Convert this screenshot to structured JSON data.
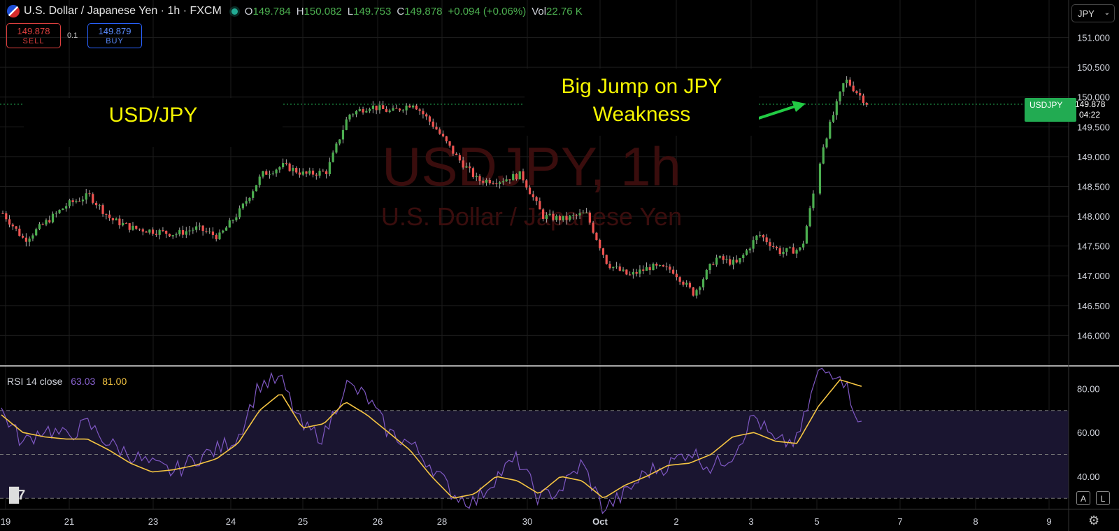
{
  "header": {
    "title": "U.S. Dollar / Japanese Yen · 1h · FXCM",
    "open_label": "O",
    "open": "149.784",
    "high_label": "H",
    "high": "150.082",
    "low_label": "L",
    "low": "149.753",
    "close_label": "C",
    "close": "149.878",
    "change": "+0.094 (+0.06%)",
    "vol_label": "Vol",
    "vol": "22.76 K",
    "status_color": "#22ab94"
  },
  "trade": {
    "sell_price": "149.878",
    "sell_label": "SELL",
    "buy_price": "149.879",
    "buy_label": "BUY",
    "spread": "0.1"
  },
  "currency_selector": {
    "value": "JPY",
    "caret_icon": "chevron-down-icon"
  },
  "annotations": {
    "symbol_text": "USD/JPY",
    "callout_line1": "Big Jump on JPY",
    "callout_line2": "Weakness",
    "arrow_color": "#22cc44",
    "text_color": "#f5f500"
  },
  "watermark": {
    "line1": "USDJPY, 1h",
    "line2": "U.S. Dollar / Japanese Yen"
  },
  "last_price_tag": {
    "symbol": "USDJPY",
    "price": "149.878",
    "countdown": "04:22",
    "color": "#22ab52"
  },
  "rsi_legend": {
    "label": "RSI 14 close",
    "rsi_value": "63.03",
    "ma_value": "81.00"
  },
  "colors": {
    "up": "#26a69a",
    "up_candle": "#4caf50",
    "down_candle": "#ef5350",
    "rsi_line": "#7e57c2",
    "rsi_ma": "#f5c542",
    "band": "#1a1530"
  },
  "buttons": {
    "auto": "A",
    "log": "L"
  },
  "chart_data": [
    {
      "type": "candlestick",
      "title": "U.S. Dollar / Japanese Yen · 1h · FXCM",
      "y_ticks": [
        "146.000",
        "146.500",
        "147.000",
        "147.500",
        "148.000",
        "148.500",
        "149.000",
        "149.500",
        "150.000",
        "150.500",
        "151.000"
      ],
      "ylim": [
        145.5,
        151.3
      ],
      "x_ticks": [
        "19",
        "21",
        "23",
        "24",
        "25",
        "26",
        "28",
        "30",
        "Oct",
        "2",
        "3",
        "5",
        "7",
        "8",
        "9"
      ],
      "close_path": [
        [
          "19",
          148.05
        ],
        [
          "19",
          147.6
        ],
        [
          "19",
          147.9
        ],
        [
          "21",
          148.2
        ],
        [
          "21",
          148.35
        ],
        [
          "21",
          147.95
        ],
        [
          "23",
          147.8
        ],
        [
          "23",
          147.75
        ],
        [
          "23",
          147.7
        ],
        [
          "24",
          147.8
        ],
        [
          "24",
          147.65
        ],
        [
          "24",
          148.1
        ],
        [
          "24",
          148.7
        ],
        [
          "25",
          148.85
        ],
        [
          "25",
          148.7
        ],
        [
          "25",
          148.75
        ],
        [
          "25",
          149.7
        ],
        [
          "26",
          149.85
        ],
        [
          "26",
          149.75
        ],
        [
          "26",
          149.9
        ],
        [
          "28",
          149.5
        ],
        [
          "28",
          149.0
        ],
        [
          "28",
          148.6
        ],
        [
          "28",
          148.6
        ],
        [
          "30",
          148.7
        ],
        [
          "30",
          148.0
        ],
        [
          "30",
          147.95
        ],
        [
          "Oct",
          148.05
        ],
        [
          "Oct",
          147.2
        ],
        [
          "Oct",
          147.0
        ],
        [
          "Oct",
          147.15
        ],
        [
          "2",
          147.1
        ],
        [
          "2",
          146.7
        ],
        [
          "2",
          147.3
        ],
        [
          "3",
          147.2
        ],
        [
          "3",
          147.7
        ],
        [
          "3",
          147.4
        ],
        [
          "5",
          147.45
        ],
        [
          "5",
          149.2
        ],
        [
          "5",
          150.3
        ],
        [
          "5",
          149.9
        ]
      ]
    },
    {
      "type": "line",
      "title": "RSI 14 close",
      "y_ticks": [
        "40.00",
        "60.00",
        "80.00"
      ],
      "ylim": [
        25,
        90
      ],
      "bands": [
        30,
        50,
        70
      ],
      "series": [
        {
          "name": "RSI",
          "values": [
            70,
            55,
            62,
            58,
            64,
            55,
            50,
            45,
            42,
            48,
            52,
            58,
            82,
            84,
            62,
            58,
            82,
            76,
            60,
            55,
            45,
            32,
            28,
            40,
            48,
            30,
            34,
            46,
            25,
            32,
            42,
            45,
            52,
            44,
            50,
            68,
            55,
            56,
            87,
            88,
            63
          ]
        },
        {
          "name": "MA",
          "values": [
            68,
            60,
            58,
            57,
            57,
            52,
            46,
            42,
            43,
            45,
            48,
            55,
            70,
            78,
            62,
            64,
            74,
            68,
            60,
            52,
            40,
            30,
            32,
            40,
            38,
            32,
            40,
            38,
            30,
            36,
            40,
            45,
            46,
            50,
            58,
            60,
            56,
            55,
            72,
            84,
            81
          ]
        }
      ]
    }
  ]
}
